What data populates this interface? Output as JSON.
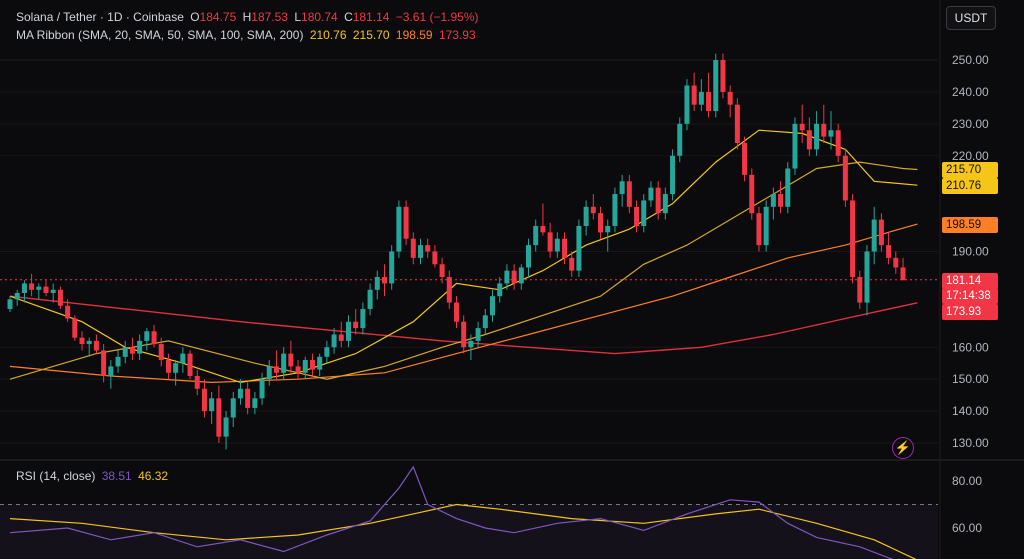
{
  "header": {
    "symbol": "Solana / Tether · 1D · Coinbase",
    "open_label": "O",
    "open": "184.75",
    "high_label": "H",
    "high": "187.53",
    "low_label": "L",
    "low": "180.74",
    "close_label": "C",
    "close": "181.14",
    "change": "−3.61 (−1.95%)"
  },
  "ma_legend": {
    "label": "MA Ribbon (SMA, 20, SMA, 50, SMA, 100, SMA, 200)",
    "values": [
      "210.76",
      "215.70",
      "198.59",
      "173.93"
    ]
  },
  "rsi_legend": {
    "label": "RSI (14, close)",
    "rsi": "38.51",
    "ma": "46.32"
  },
  "currency_button": "USDT",
  "price_tags": [
    {
      "name": "sma50-tag",
      "label": "215.70",
      "value": 215.7,
      "color": "#f5c518"
    },
    {
      "name": "sma20-tag",
      "label": "210.76",
      "value": 210.76,
      "color": "#f5c518"
    },
    {
      "name": "sma100-tag",
      "label": "198.59",
      "value": 198.59,
      "color": "#ff7f27"
    },
    {
      "name": "last-price-tag",
      "label": "181.14",
      "value": 181.14,
      "color": "#f23645",
      "countdown": "17:14:38"
    },
    {
      "name": "sma200-tag",
      "label": "173.93",
      "value": 173.93,
      "color": "#f23645"
    }
  ],
  "colors": {
    "up": "#26a69a",
    "down": "#f23645",
    "sma20": "#f5c518",
    "sma50": "#d4a72c",
    "sma100": "#ff7f27",
    "sma200": "#e0303f",
    "rsi": "#7e57c2",
    "rsi_ma": "#f5c518",
    "header_down": "#f23645",
    "header_muted": "#d1d4dc"
  },
  "chart_data": {
    "type": "candlestick",
    "title": "Solana / Tether · 1D · Coinbase",
    "price_axis": {
      "ticks": [
        250,
        240,
        230,
        220,
        190,
        160,
        150,
        140,
        130
      ],
      "range": [
        125,
        255
      ]
    },
    "rsi_axis": {
      "ticks": [
        80,
        60
      ],
      "range": [
        50,
        90
      ],
      "upper_band": 70
    },
    "candles": [
      [
        172,
        176,
        171,
        175
      ],
      [
        175,
        178,
        173,
        177
      ],
      [
        177,
        181,
        174,
        180
      ],
      [
        180,
        183,
        176,
        178
      ],
      [
        178,
        180,
        175,
        179
      ],
      [
        179,
        181,
        176,
        177
      ],
      [
        177,
        180,
        174,
        178
      ],
      [
        178,
        179,
        172,
        173
      ],
      [
        173,
        175,
        168,
        169
      ],
      [
        169,
        170,
        162,
        163
      ],
      [
        163,
        165,
        159,
        161
      ],
      [
        161,
        163,
        157,
        162
      ],
      [
        162,
        164,
        158,
        159
      ],
      [
        159,
        161,
        149,
        151
      ],
      [
        151,
        156,
        147,
        154
      ],
      [
        154,
        159,
        152,
        157
      ],
      [
        157,
        162,
        155,
        160
      ],
      [
        160,
        163,
        156,
        158
      ],
      [
        158,
        164,
        156,
        162
      ],
      [
        162,
        166,
        159,
        165
      ],
      [
        165,
        167,
        160,
        161
      ],
      [
        161,
        163,
        154,
        156
      ],
      [
        156,
        158,
        150,
        152
      ],
      [
        152,
        156,
        148,
        155
      ],
      [
        155,
        160,
        152,
        158
      ],
      [
        158,
        159,
        150,
        151
      ],
      [
        151,
        153,
        145,
        147
      ],
      [
        147,
        150,
        138,
        140
      ],
      [
        140,
        146,
        136,
        144
      ],
      [
        144,
        148,
        130,
        132
      ],
      [
        132,
        140,
        128,
        138
      ],
      [
        138,
        146,
        135,
        144
      ],
      [
        144,
        150,
        142,
        147
      ],
      [
        147,
        149,
        139,
        141
      ],
      [
        141,
        146,
        139,
        144
      ],
      [
        144,
        152,
        142,
        150
      ],
      [
        150,
        156,
        148,
        154
      ],
      [
        154,
        159,
        150,
        152
      ],
      [
        152,
        160,
        150,
        158
      ],
      [
        158,
        162,
        152,
        154
      ],
      [
        154,
        156,
        150,
        152
      ],
      [
        152,
        157,
        150,
        156
      ],
      [
        156,
        158,
        151,
        153
      ],
      [
        153,
        158,
        151,
        157
      ],
      [
        157,
        162,
        155,
        160
      ],
      [
        160,
        166,
        158,
        164
      ],
      [
        164,
        168,
        160,
        162
      ],
      [
        162,
        170,
        160,
        168
      ],
      [
        168,
        172,
        164,
        166
      ],
      [
        166,
        174,
        164,
        172
      ],
      [
        172,
        180,
        170,
        178
      ],
      [
        178,
        184,
        175,
        182
      ],
      [
        182,
        186,
        176,
        180
      ],
      [
        180,
        192,
        178,
        190
      ],
      [
        190,
        206,
        188,
        204
      ],
      [
        204,
        206,
        192,
        194
      ],
      [
        194,
        196,
        186,
        188
      ],
      [
        188,
        194,
        186,
        192
      ],
      [
        192,
        194,
        188,
        190
      ],
      [
        190,
        192,
        185,
        186
      ],
      [
        186,
        188,
        180,
        182
      ],
      [
        182,
        184,
        172,
        174
      ],
      [
        174,
        176,
        166,
        168
      ],
      [
        168,
        170,
        158,
        160
      ],
      [
        160,
        164,
        156,
        162
      ],
      [
        162,
        168,
        160,
        166
      ],
      [
        166,
        172,
        164,
        170
      ],
      [
        170,
        178,
        168,
        176
      ],
      [
        176,
        182,
        174,
        180
      ],
      [
        180,
        186,
        178,
        184
      ],
      [
        184,
        186,
        178,
        180
      ],
      [
        180,
        186,
        178,
        185
      ],
      [
        185,
        194,
        182,
        192
      ],
      [
        192,
        200,
        190,
        198
      ],
      [
        198,
        205,
        195,
        196
      ],
      [
        196,
        199,
        188,
        190
      ],
      [
        190,
        196,
        188,
        194
      ],
      [
        194,
        196,
        186,
        188
      ],
      [
        188,
        190,
        182,
        184
      ],
      [
        184,
        200,
        182,
        198
      ],
      [
        198,
        206,
        195,
        204
      ],
      [
        204,
        208,
        200,
        202
      ],
      [
        202,
        204,
        194,
        196
      ],
      [
        196,
        200,
        190,
        198
      ],
      [
        198,
        210,
        196,
        208
      ],
      [
        208,
        214,
        204,
        212
      ],
      [
        212,
        214,
        202,
        204
      ],
      [
        204,
        206,
        196,
        198
      ],
      [
        198,
        208,
        196,
        206
      ],
      [
        206,
        212,
        204,
        210
      ],
      [
        210,
        212,
        200,
        202
      ],
      [
        202,
        210,
        200,
        208
      ],
      [
        208,
        222,
        206,
        220
      ],
      [
        220,
        232,
        218,
        230
      ],
      [
        230,
        244,
        228,
        242
      ],
      [
        242,
        246,
        234,
        236
      ],
      [
        236,
        244,
        234,
        240
      ],
      [
        240,
        246,
        232,
        234
      ],
      [
        234,
        252,
        232,
        250
      ],
      [
        250,
        252,
        238,
        240
      ],
      [
        240,
        242,
        232,
        236
      ],
      [
        236,
        238,
        222,
        224
      ],
      [
        224,
        226,
        212,
        214
      ],
      [
        214,
        216,
        200,
        202
      ],
      [
        202,
        204,
        190,
        192
      ],
      [
        192,
        206,
        190,
        204
      ],
      [
        204,
        210,
        200,
        208
      ],
      [
        208,
        212,
        202,
        204
      ],
      [
        204,
        218,
        202,
        216
      ],
      [
        216,
        232,
        214,
        230
      ],
      [
        230,
        236,
        224,
        228
      ],
      [
        228,
        232,
        220,
        222
      ],
      [
        222,
        234,
        220,
        230
      ],
      [
        230,
        236,
        224,
        226
      ],
      [
        226,
        234,
        222,
        228
      ],
      [
        228,
        230,
        218,
        220
      ],
      [
        220,
        222,
        204,
        206
      ],
      [
        206,
        208,
        180,
        182
      ],
      [
        182,
        184,
        172,
        174
      ],
      [
        174,
        192,
        170,
        190
      ],
      [
        190,
        204,
        186,
        200
      ],
      [
        200,
        202,
        190,
        192
      ],
      [
        192,
        196,
        186,
        188
      ],
      [
        188,
        190,
        183,
        185
      ],
      [
        185,
        188,
        181,
        181
      ]
    ],
    "sma20_points": [
      [
        0,
        176
      ],
      [
        10,
        168
      ],
      [
        16,
        160
      ],
      [
        24,
        155
      ],
      [
        32,
        149
      ],
      [
        40,
        152
      ],
      [
        48,
        158
      ],
      [
        56,
        168
      ],
      [
        62,
        180
      ],
      [
        68,
        178
      ],
      [
        74,
        184
      ],
      [
        80,
        192
      ],
      [
        86,
        197
      ],
      [
        92,
        205
      ],
      [
        98,
        218
      ],
      [
        104,
        228
      ],
      [
        110,
        227
      ],
      [
        116,
        222
      ],
      [
        120,
        212
      ],
      [
        126,
        210.76
      ]
    ],
    "sma50_points": [
      [
        0,
        150
      ],
      [
        12,
        158
      ],
      [
        22,
        162
      ],
      [
        34,
        155
      ],
      [
        44,
        150
      ],
      [
        52,
        154
      ],
      [
        60,
        160
      ],
      [
        66,
        164
      ],
      [
        74,
        170
      ],
      [
        82,
        176
      ],
      [
        88,
        186
      ],
      [
        94,
        192
      ],
      [
        100,
        200
      ],
      [
        106,
        208
      ],
      [
        112,
        216
      ],
      [
        118,
        218
      ],
      [
        124,
        216
      ],
      [
        126,
        215.7
      ]
    ],
    "sma100_points": [
      [
        0,
        154
      ],
      [
        14,
        151
      ],
      [
        28,
        149
      ],
      [
        40,
        150
      ],
      [
        52,
        152
      ],
      [
        62,
        158
      ],
      [
        72,
        164
      ],
      [
        82,
        170
      ],
      [
        92,
        176
      ],
      [
        100,
        182
      ],
      [
        108,
        188
      ],
      [
        116,
        192
      ],
      [
        122,
        196
      ],
      [
        126,
        198.59
      ]
    ],
    "sma200_points": [
      [
        0,
        176
      ],
      [
        16,
        172
      ],
      [
        32,
        168
      ],
      [
        46,
        165
      ],
      [
        60,
        162
      ],
      [
        72,
        160
      ],
      [
        84,
        158
      ],
      [
        96,
        160
      ],
      [
        106,
        164
      ],
      [
        116,
        169
      ],
      [
        126,
        173.93
      ]
    ],
    "rsi_points": [
      [
        0,
        58
      ],
      [
        8,
        60
      ],
      [
        14,
        55
      ],
      [
        20,
        58
      ],
      [
        26,
        52
      ],
      [
        32,
        55
      ],
      [
        38,
        50
      ],
      [
        44,
        57
      ],
      [
        50,
        63
      ],
      [
        54,
        77
      ],
      [
        56,
        86
      ],
      [
        58,
        70
      ],
      [
        62,
        64
      ],
      [
        66,
        60
      ],
      [
        70,
        58
      ],
      [
        76,
        62
      ],
      [
        82,
        64
      ],
      [
        88,
        59
      ],
      [
        94,
        66
      ],
      [
        100,
        72
      ],
      [
        104,
        71
      ],
      [
        108,
        62
      ],
      [
        112,
        56
      ],
      [
        118,
        52
      ],
      [
        124,
        45
      ],
      [
        126,
        38.51
      ]
    ],
    "rsi_ma_points": [
      [
        0,
        64
      ],
      [
        10,
        62
      ],
      [
        20,
        58
      ],
      [
        30,
        55
      ],
      [
        40,
        57
      ],
      [
        50,
        62
      ],
      [
        56,
        66
      ],
      [
        62,
        70
      ],
      [
        68,
        68
      ],
      [
        78,
        64
      ],
      [
        88,
        62
      ],
      [
        98,
        66
      ],
      [
        104,
        68
      ],
      [
        112,
        62
      ],
      [
        120,
        55
      ],
      [
        126,
        46.32
      ]
    ]
  }
}
